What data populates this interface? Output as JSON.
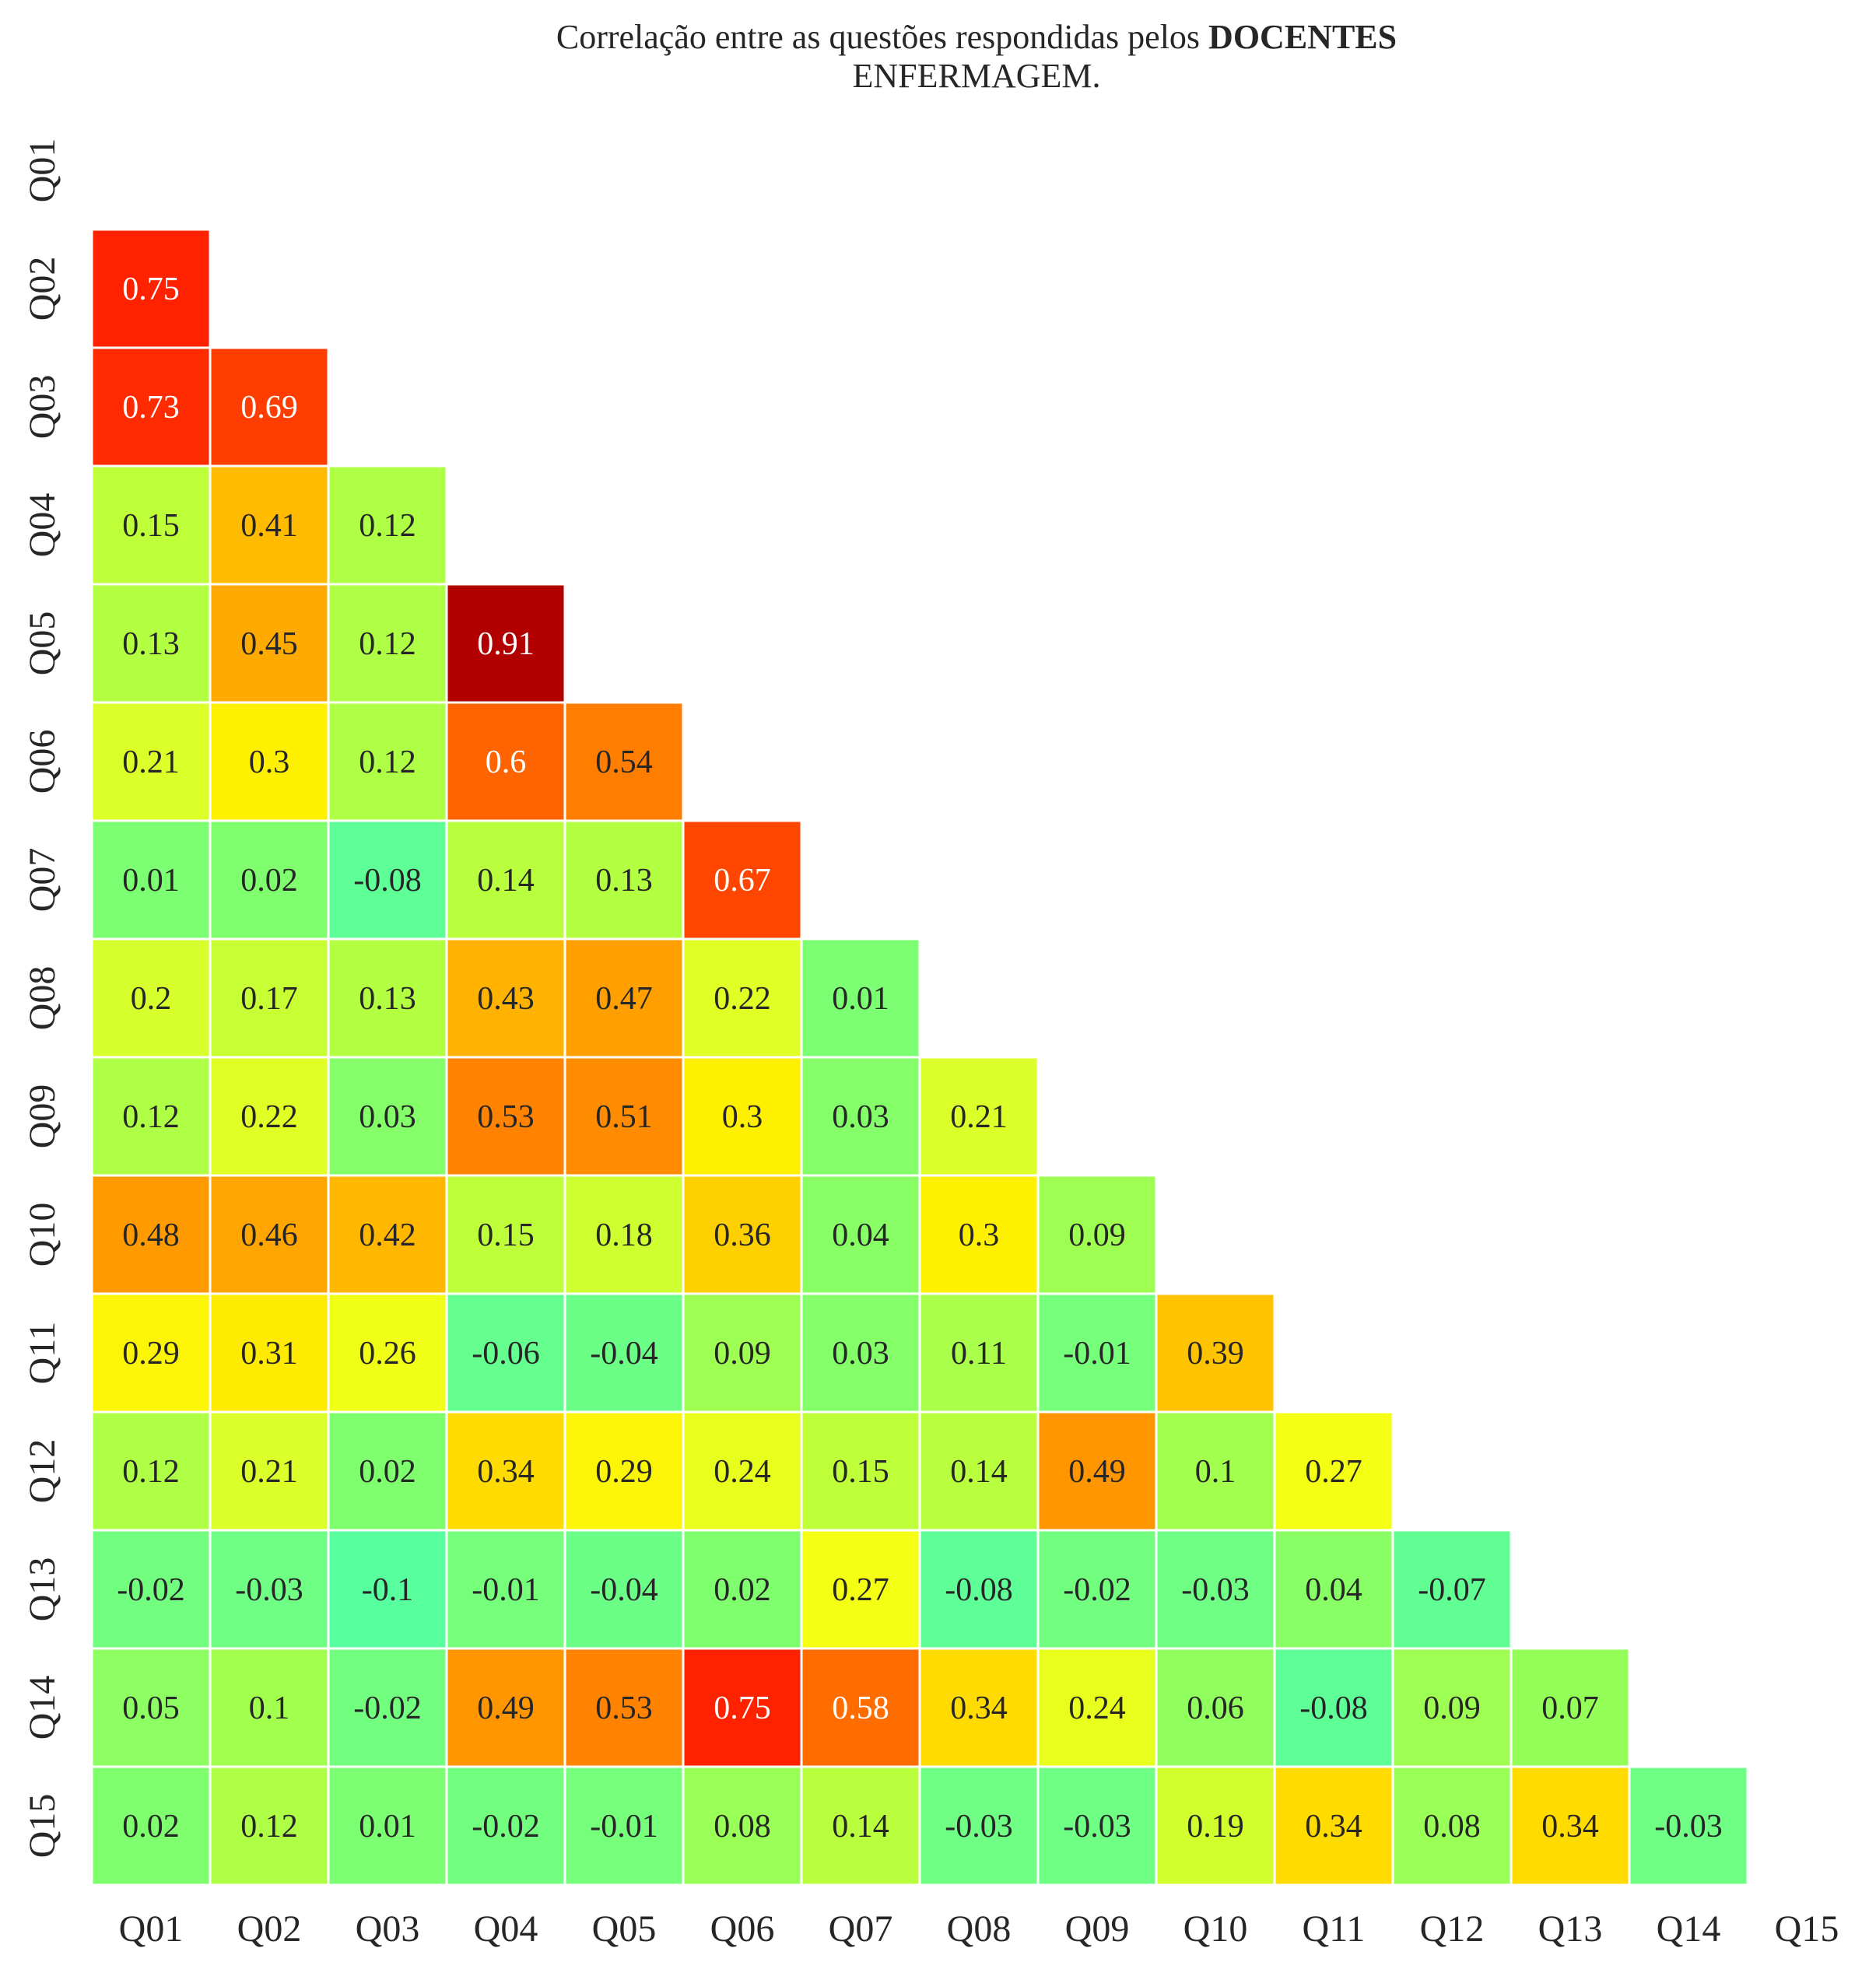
{
  "chart_data": {
    "type": "heatmap",
    "title": {
      "prefix": "Correlação entre as questões respondidas pelos ",
      "bold": "DOCENTES",
      "line2": "ENFERMAGEM."
    },
    "x_labels": [
      "Q01",
      "Q02",
      "Q03",
      "Q04",
      "Q05",
      "Q06",
      "Q07",
      "Q08",
      "Q09",
      "Q10",
      "Q11",
      "Q12",
      "Q13",
      "Q14",
      "Q15"
    ],
    "y_labels": [
      "Q01",
      "Q02",
      "Q03",
      "Q04",
      "Q05",
      "Q06",
      "Q07",
      "Q08",
      "Q09",
      "Q10",
      "Q11",
      "Q12",
      "Q13",
      "Q14",
      "Q15"
    ],
    "mask": "lower-triangle (diagonal and upper triangle hidden)",
    "colormap": "rainbow green-yellow-orange-red",
    "values": [
      [],
      [
        0.75
      ],
      [
        0.73,
        0.69
      ],
      [
        0.15,
        0.41,
        0.12
      ],
      [
        0.13,
        0.45,
        0.12,
        0.91
      ],
      [
        0.21,
        0.3,
        0.12,
        0.6,
        0.54
      ],
      [
        0.01,
        0.02,
        -0.08,
        0.14,
        0.13,
        0.67
      ],
      [
        0.2,
        0.17,
        0.13,
        0.43,
        0.47,
        0.22,
        0.01
      ],
      [
        0.12,
        0.22,
        0.03,
        0.53,
        0.51,
        0.3,
        0.03,
        0.21
      ],
      [
        0.48,
        0.46,
        0.42,
        0.15,
        0.18,
        0.36,
        0.04,
        0.3,
        0.09
      ],
      [
        0.29,
        0.31,
        0.26,
        -0.06,
        -0.04,
        0.09,
        0.03,
        0.11,
        -0.01,
        0.39
      ],
      [
        0.12,
        0.21,
        0.02,
        0.34,
        0.29,
        0.24,
        0.15,
        0.14,
        0.49,
        0.1,
        0.27
      ],
      [
        -0.02,
        -0.03,
        -0.1,
        -0.01,
        -0.04,
        0.02,
        0.27,
        -0.08,
        -0.02,
        -0.03,
        0.04,
        -0.07
      ],
      [
        0.05,
        0.1,
        -0.02,
        0.49,
        0.53,
        0.75,
        0.58,
        0.34,
        0.24,
        0.06,
        -0.08,
        0.09,
        0.07
      ],
      [
        0.02,
        0.12,
        0.01,
        -0.02,
        -0.01,
        0.08,
        0.14,
        -0.03,
        -0.03,
        0.19,
        0.34,
        0.08,
        0.34,
        -0.03
      ]
    ]
  }
}
